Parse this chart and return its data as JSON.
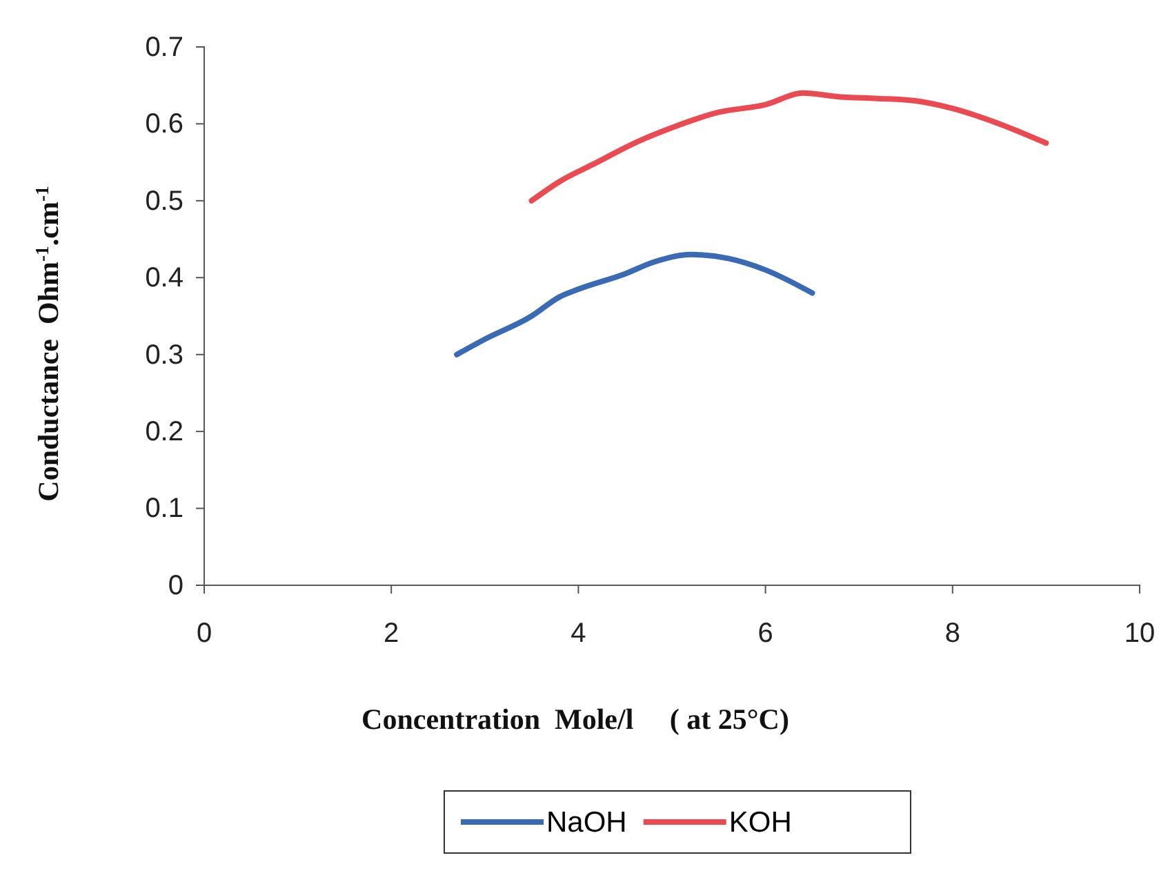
{
  "chart_data": {
    "type": "line",
    "xlabel": "Concentration  Mole/l     ( at 25°C)",
    "ylabel": "Conductance  Ohm$^{-1}$.cm$^{-1}$",
    "xlim": [
      0,
      10
    ],
    "xticks": [
      0,
      2,
      4,
      6,
      8,
      10
    ],
    "ylim": [
      0,
      0.7
    ],
    "yticks": [
      0,
      0.1,
      0.2,
      0.3,
      0.4,
      0.5,
      0.6,
      0.7
    ],
    "legend": "bottom",
    "grid": false,
    "marker": "none",
    "line_style": "solid",
    "series": [
      {
        "name": "NaOH",
        "color": "#3a6ab4",
        "x": [
          2.7,
          3.0,
          3.5,
          3.8,
          4.0,
          4.5,
          4.8,
          5.2,
          5.6,
          6.0,
          6.5
        ],
        "values": [
          0.3,
          0.32,
          0.35,
          0.375,
          0.385,
          0.405,
          0.42,
          0.43,
          0.425,
          0.41,
          0.38
        ]
      },
      {
        "name": "KOH",
        "color": "#ea4a52",
        "x": [
          3.5,
          3.8,
          4.2,
          4.6,
          5.0,
          5.5,
          6.0,
          6.4,
          6.8,
          7.2,
          7.6,
          8.0,
          8.5,
          9.0
        ],
        "values": [
          0.5,
          0.525,
          0.55,
          0.575,
          0.595,
          0.615,
          0.625,
          0.64,
          0.635,
          0.633,
          0.63,
          0.62,
          0.6,
          0.575
        ]
      }
    ]
  }
}
